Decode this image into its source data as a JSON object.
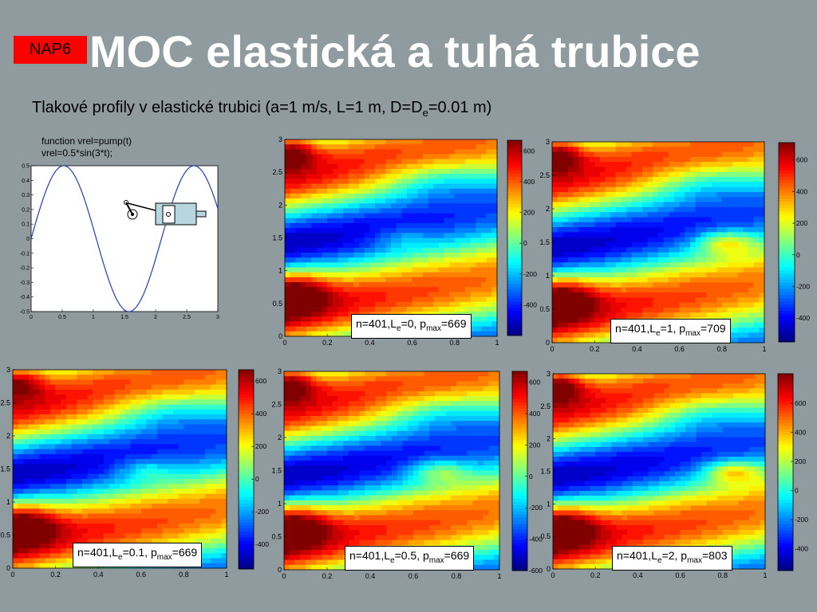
{
  "slide": {
    "badge": "NAP6",
    "title": "MOC elastická a tuhá trubice",
    "subtitle": {
      "pre": "Tlakové profily v elastické trubici (a=1 m/s, L=1 m, D=D",
      "sub": "e",
      "post": "=0.01 m)"
    }
  },
  "colors": {
    "background": "#8f9b9f",
    "badge": "#ff0000",
    "title": "#ffffff"
  },
  "chart_data": [
    {
      "type": "line",
      "code_lines": [
        "function vrel=pump(t)",
        "vrel=0.5*sin(3*t);"
      ],
      "x_ticks": [
        "0",
        "0.5",
        "1",
        "1.5",
        "2",
        "2.5",
        "3"
      ],
      "y_ticks": [
        "-0.5",
        "-0.4",
        "-0.3",
        "-0.2",
        "-0.1",
        "0",
        "0.1",
        "0.2",
        "0.3",
        "0.4",
        "0.5"
      ],
      "xlim": [
        0,
        3
      ],
      "ylim": [
        -0.5,
        0.5
      ],
      "amplitude": 0.5,
      "frequency": 3,
      "line_color": "#1f3fbf",
      "icon": "pump-piston-icon"
    },
    {
      "type": "heatmap",
      "id": "le0",
      "label": {
        "n": "n=401,L",
        "le_sub": "e",
        "le": "=0, p",
        "p_sub": "max",
        "p": "=669"
      },
      "x_ticks": [
        "0",
        "0.2",
        "0.4",
        "0.6",
        "0.8",
        "1"
      ],
      "y_ticks": [
        "0",
        "0.5",
        "1",
        "1.5",
        "2",
        "2.5",
        "3"
      ],
      "xlim": [
        0,
        1
      ],
      "ylim": [
        0,
        3
      ],
      "colorbar_ticks": [
        "-400",
        "-200",
        "0",
        "200",
        "400",
        "600"
      ],
      "colorbar_range": [
        -600,
        669
      ],
      "pmax": 669
    },
    {
      "type": "heatmap",
      "id": "le1",
      "label": {
        "n": "n=401,L",
        "le_sub": "e",
        "le": "=1, p",
        "p_sub": "max",
        "p": "=709"
      },
      "x_ticks": [
        "0",
        "0.2",
        "0.4",
        "0.6",
        "0.8",
        "1"
      ],
      "y_ticks": [
        "0",
        "0.5",
        "1",
        "1.5",
        "2",
        "2.5",
        "3"
      ],
      "xlim": [
        0,
        1
      ],
      "ylim": [
        0,
        3
      ],
      "colorbar_ticks": [
        "-400",
        "-200",
        "0",
        "200",
        "400",
        "600"
      ],
      "colorbar_range": [
        -550,
        709
      ],
      "pmax": 709
    },
    {
      "type": "heatmap",
      "id": "le01",
      "label": {
        "n": "n=401,L",
        "le_sub": "e",
        "le": "=0.1, p",
        "p_sub": "max",
        "p": "=669"
      },
      "x_ticks": [
        "0",
        "0.2",
        "0.4",
        "0.6",
        "0.8",
        "1"
      ],
      "y_ticks": [
        "0",
        "0.5",
        "1",
        "1.5",
        "2",
        "2.5",
        "3"
      ],
      "xlim": [
        0,
        1
      ],
      "ylim": [
        0,
        3
      ],
      "colorbar_ticks": [
        "-400",
        "-200",
        "0",
        "200",
        "400",
        "600"
      ],
      "colorbar_range": [
        -550,
        669
      ],
      "pmax": 669
    },
    {
      "type": "heatmap",
      "id": "le05",
      "label": {
        "n": "n=401,L",
        "le_sub": "e",
        "le": "=0.5, p",
        "p_sub": "max",
        "p": "=669"
      },
      "x_ticks": [
        "0",
        "0.2",
        "0.4",
        "0.6",
        "0.8",
        "1"
      ],
      "y_ticks": [
        "0",
        "0.5",
        "1",
        "1.5",
        "2",
        "2.5",
        "3"
      ],
      "xlim": [
        0,
        1
      ],
      "ylim": [
        0,
        3
      ],
      "colorbar_ticks": [
        "-600",
        "-400",
        "-200",
        "0",
        "200",
        "400",
        "600"
      ],
      "colorbar_range": [
        -600,
        669
      ],
      "pmax": 669
    },
    {
      "type": "heatmap",
      "id": "le2",
      "label": {
        "n": "n=401,L",
        "le_sub": "e",
        "le": "=2, p",
        "p_sub": "max",
        "p": "=803"
      },
      "x_ticks": [
        "0",
        "0.2",
        "0.4",
        "0.6",
        "0.8",
        "1"
      ],
      "y_ticks": [
        "0",
        "0.5",
        "1",
        "1.5",
        "2",
        "2.5",
        "3"
      ],
      "xlim": [
        0,
        1
      ],
      "ylim": [
        0,
        3
      ],
      "colorbar_ticks": [
        "-400",
        "-200",
        "0",
        "200",
        "400",
        "600"
      ],
      "colorbar_range": [
        -550,
        803
      ],
      "pmax": 803
    }
  ]
}
